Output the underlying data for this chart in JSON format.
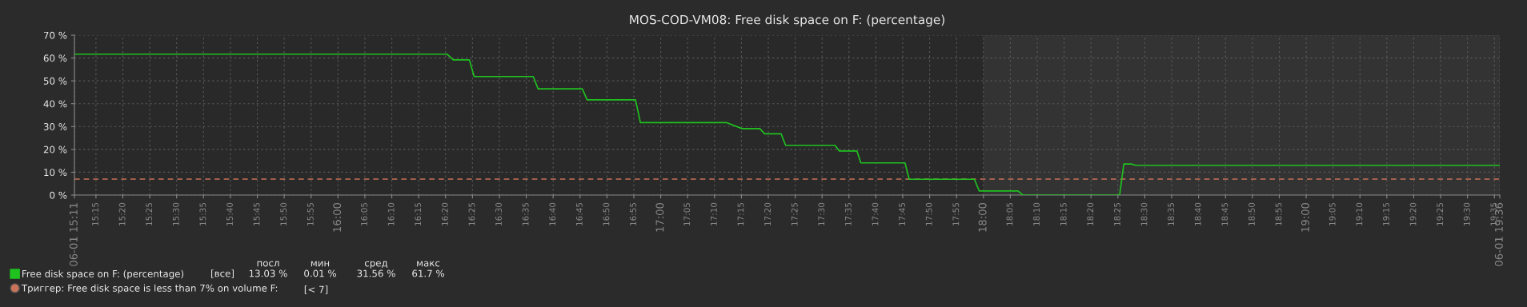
{
  "chart_data": {
    "type": "line",
    "title": "MOS-COD-VM08: Free disk space on F: (percentage)",
    "x": [
      15.1833,
      16.338,
      16.357,
      16.407,
      16.422,
      16.605,
      16.62,
      16.757,
      16.772,
      16.922,
      16.937,
      17.205,
      17.252,
      17.307,
      17.322,
      17.373,
      17.387,
      17.54,
      17.553,
      17.608,
      17.62,
      17.757,
      17.77,
      17.972,
      17.987,
      18.107,
      18.122,
      18.422,
      18.435,
      18.458,
      18.472,
      19.6
    ],
    "series": [
      {
        "name": "Free disk space on F: (percentage)",
        "color": "#1fc21f",
        "values": [
          61.7,
          61.7,
          59.2,
          59.2,
          51.9,
          51.9,
          46.5,
          46.5,
          41.7,
          41.7,
          31.7,
          31.7,
          29.1,
          29.1,
          26.8,
          26.8,
          21.8,
          21.8,
          19.3,
          19.3,
          14.1,
          14.1,
          6.9,
          6.9,
          1.8,
          1.8,
          0.01,
          0.01,
          13.6,
          13.6,
          13.03,
          13.03
        ]
      }
    ],
    "xlim": [
      15.1833,
      19.6
    ],
    "xticks": [
      {
        "value": 15.1833,
        "label": "06-01 15:11"
      },
      {
        "value": 15.25,
        "label": "15:15"
      },
      {
        "value": 15.3333,
        "label": "15:20"
      },
      {
        "value": 15.4167,
        "label": "15:25"
      },
      {
        "value": 15.5,
        "label": "15:30"
      },
      {
        "value": 15.5833,
        "label": "15:35"
      },
      {
        "value": 15.6667,
        "label": "15:40"
      },
      {
        "value": 15.75,
        "label": "15:45"
      },
      {
        "value": 15.8333,
        "label": "15:50"
      },
      {
        "value": 15.9167,
        "label": "15:55"
      },
      {
        "value": 16,
        "label": "16:00"
      },
      {
        "value": 16.0833,
        "label": "16:05"
      },
      {
        "value": 16.1667,
        "label": "16:10"
      },
      {
        "value": 16.25,
        "label": "16:15"
      },
      {
        "value": 16.3333,
        "label": "16:20"
      },
      {
        "value": 16.4167,
        "label": "16:25"
      },
      {
        "value": 16.5,
        "label": "16:30"
      },
      {
        "value": 16.5833,
        "label": "16:35"
      },
      {
        "value": 16.6667,
        "label": "16:40"
      },
      {
        "value": 16.75,
        "label": "16:45"
      },
      {
        "value": 16.8333,
        "label": "16:50"
      },
      {
        "value": 16.9167,
        "label": "16:55"
      },
      {
        "value": 17,
        "label": "17:00"
      },
      {
        "value": 17.0833,
        "label": "17:05"
      },
      {
        "value": 17.1667,
        "label": "17:10"
      },
      {
        "value": 17.25,
        "label": "17:15"
      },
      {
        "value": 17.3333,
        "label": "17:20"
      },
      {
        "value": 17.4167,
        "label": "17:25"
      },
      {
        "value": 17.5,
        "label": "17:30"
      },
      {
        "value": 17.5833,
        "label": "17:35"
      },
      {
        "value": 17.6667,
        "label": "17:40"
      },
      {
        "value": 17.75,
        "label": "17:45"
      },
      {
        "value": 17.8333,
        "label": "17:50"
      },
      {
        "value": 17.9167,
        "label": "17:55"
      },
      {
        "value": 18,
        "label": "18:00"
      },
      {
        "value": 18.0833,
        "label": "18:05"
      },
      {
        "value": 18.1667,
        "label": "18:10"
      },
      {
        "value": 18.25,
        "label": "18:15"
      },
      {
        "value": 18.3333,
        "label": "18:20"
      },
      {
        "value": 18.4167,
        "label": "18:25"
      },
      {
        "value": 18.5,
        "label": "18:30"
      },
      {
        "value": 18.5833,
        "label": "18:35"
      },
      {
        "value": 18.6667,
        "label": "18:40"
      },
      {
        "value": 18.75,
        "label": "18:45"
      },
      {
        "value": 18.8333,
        "label": "18:50"
      },
      {
        "value": 18.9167,
        "label": "18:55"
      },
      {
        "value": 19,
        "label": "19:00"
      },
      {
        "value": 19.0833,
        "label": "19:05"
      },
      {
        "value": 19.1667,
        "label": "19:10"
      },
      {
        "value": 19.25,
        "label": "19:15"
      },
      {
        "value": 19.3333,
        "label": "19:20"
      },
      {
        "value": 19.4167,
        "label": "19:25"
      },
      {
        "value": 19.5,
        "label": "19:30"
      },
      {
        "value": 19.5833,
        "label": "19:35"
      },
      {
        "value": 19.6,
        "label": "06-01 19:36"
      }
    ],
    "ylim": [
      0,
      70
    ],
    "yticks": [
      {
        "value": 0,
        "label": "0 %"
      },
      {
        "value": 10,
        "label": "10 %"
      },
      {
        "value": 20,
        "label": "20 %"
      },
      {
        "value": 30,
        "label": "30 %"
      },
      {
        "value": 40,
        "label": "40 %"
      },
      {
        "value": 50,
        "label": "50 %"
      },
      {
        "value": 60,
        "label": "60 %"
      },
      {
        "value": 70,
        "label": "70 %"
      }
    ],
    "ref_lines": [
      {
        "axis": "y",
        "value": 7,
        "label": "Триггер: Free disk space is less than 7% on volume F:",
        "color": "#c8735a",
        "line_style": "dashed"
      }
    ],
    "bands": [
      {
        "axis": "x",
        "from": 18,
        "to": 19.6,
        "color": "#333333"
      }
    ],
    "annotations": [
      "[все]",
      "посл",
      "мин",
      "сред",
      "макс",
      "13.03 %",
      "0.01 %",
      "31.56 %",
      "61.7 %",
      "[< 7]"
    ],
    "grid": true,
    "legend": "bottom",
    "marker": "none",
    "line_style": "solid"
  }
}
